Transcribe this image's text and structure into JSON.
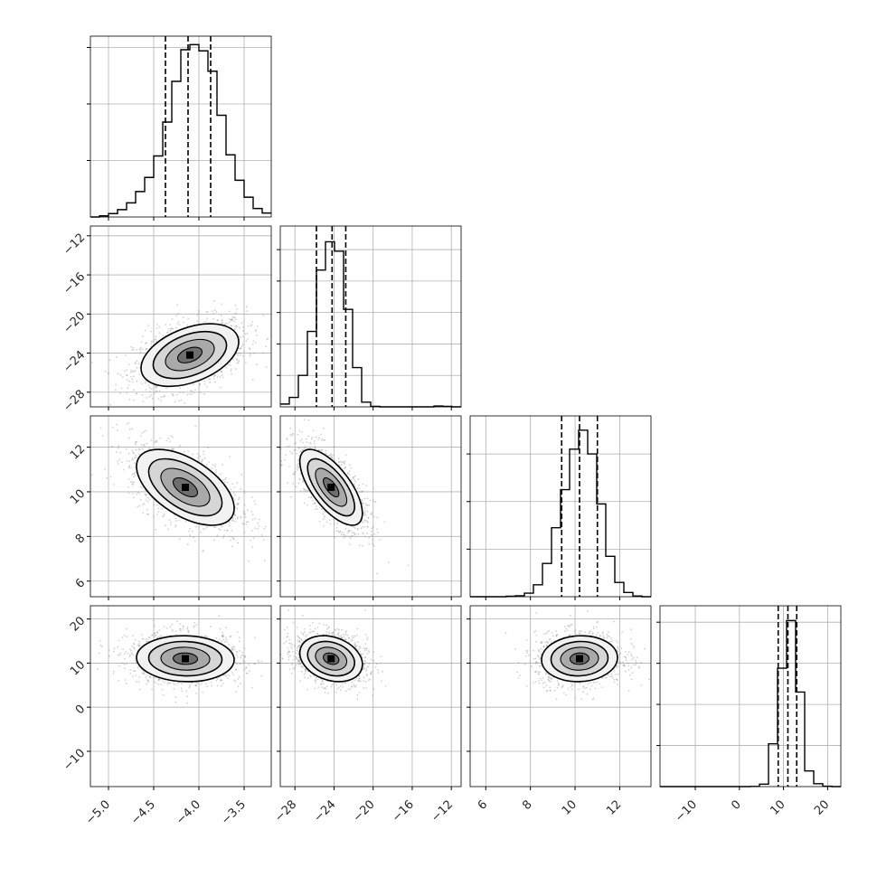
{
  "chart_data": {
    "type": "corner",
    "title": "",
    "parameters": [
      {
        "index": 0,
        "range": [
          -5.2,
          -3.2
        ],
        "ticks": [
          -5.0,
          -4.5,
          -4.0,
          -3.5
        ],
        "tick_labels": [
          "−5.0",
          "−4.5",
          "−4.0",
          "−3.5"
        ],
        "quantiles": [
          -4.37,
          -4.12,
          -3.87
        ],
        "median": -4.12
      },
      {
        "index": 1,
        "range": [
          -29.5,
          -11.0
        ],
        "ticks": [
          -28,
          -24,
          -20,
          -16,
          -12
        ],
        "tick_labels": [
          "−28",
          "−24",
          "−20",
          "−16",
          "−12"
        ],
        "quantiles": [
          -25.8,
          -24.2,
          -22.8
        ],
        "median": -24.2
      },
      {
        "index": 2,
        "range": [
          5.3,
          13.4
        ],
        "ticks": [
          6,
          8,
          10,
          12
        ],
        "tick_labels": [
          "6",
          "8",
          "10",
          "12"
        ],
        "quantiles": [
          9.4,
          10.2,
          11.0
        ],
        "median": 10.2
      },
      {
        "index": 3,
        "range": [
          -18.0,
          23.0
        ],
        "ticks": [
          -10,
          0,
          10,
          20
        ],
        "tick_labels": [
          "−10",
          "0",
          "10",
          "20"
        ],
        "quantiles": [
          8.8,
          11.0,
          13.0
        ],
        "median": 11.0
      }
    ],
    "histograms": [
      {
        "param": 0,
        "bin_edges": [
          -5.2,
          -5.1,
          -5.0,
          -4.9,
          -4.8,
          -4.7,
          -4.6,
          -4.5,
          -4.4,
          -4.3,
          -4.2,
          -4.1,
          -4.0,
          -3.9,
          -3.8,
          -3.7,
          -3.6,
          -3.5,
          -3.4,
          -3.3,
          -3.2
        ],
        "counts": [
          0,
          2,
          6,
          13,
          25,
          45,
          70,
          108,
          168,
          240,
          296,
          305,
          294,
          258,
          180,
          110,
          65,
          35,
          15,
          7
        ],
        "ymax": 320,
        "yticks": [
          0,
          100,
          200,
          300
        ]
      },
      {
        "param": 1,
        "bin_edges": [
          -29.5,
          -28.575,
          -27.65,
          -26.725,
          -25.8,
          -24.875,
          -23.95,
          -23.025,
          -22.1,
          -21.175,
          -20.25,
          -19.325,
          -18.4,
          -17.475,
          -16.55,
          -15.625,
          -14.7,
          -13.775,
          -12.85,
          -11.925,
          -11.0
        ],
        "counts": [
          18,
          60,
          200,
          480,
          870,
          1050,
          990,
          620,
          250,
          30,
          3,
          0,
          0,
          0,
          0,
          0,
          0,
          5,
          3,
          0
        ],
        "ymax": 1150,
        "yticks": [
          0,
          200,
          400,
          600,
          800,
          1000
        ]
      },
      {
        "param": 2,
        "bin_edges": [
          5.3,
          5.705,
          6.11,
          6.515,
          6.92,
          7.325,
          7.73,
          8.135,
          8.54,
          8.945,
          9.35,
          9.755,
          10.16,
          10.565,
          10.97,
          11.375,
          11.78,
          12.185,
          12.59,
          12.995,
          13.4
        ],
        "counts": [
          0,
          0,
          0,
          0,
          2,
          4,
          15,
          50,
          140,
          290,
          450,
          620,
          700,
          600,
          390,
          170,
          60,
          18,
          3,
          0
        ],
        "ymax": 760,
        "yticks": [
          0,
          200,
          400,
          600
        ]
      },
      {
        "param": 3,
        "bin_edges": [
          -18.0,
          -15.95,
          -13.9,
          -11.85,
          -9.8,
          -7.75,
          -5.7,
          -3.65,
          -1.6,
          0.45,
          2.5,
          4.55,
          6.6,
          8.65,
          10.7,
          12.75,
          14.8,
          16.85,
          18.9,
          20.95,
          23.0
        ],
        "counts": [
          0,
          0,
          0,
          0,
          0,
          0,
          0,
          0,
          0,
          0,
          2,
          30,
          520,
          1440,
          2020,
          1150,
          190,
          35,
          5,
          0
        ],
        "ymax": 2200,
        "yticks": [
          0,
          500,
          1000,
          1500,
          2000
        ]
      }
    ],
    "pairs": [
      {
        "x_param": 0,
        "y_param": 1,
        "mean": [
          -4.1,
          -24.2
        ],
        "sd": [
          0.27,
          1.6
        ],
        "corr": 0.42
      },
      {
        "x_param": 0,
        "y_param": 2,
        "mean": [
          -4.15,
          10.2
        ],
        "sd": [
          0.27,
          0.85
        ],
        "corr": -0.55
      },
      {
        "x_param": 1,
        "y_param": 2,
        "mean": [
          -24.3,
          10.2
        ],
        "sd": [
          1.6,
          0.85
        ],
        "corr": -0.68
      },
      {
        "x_param": 0,
        "y_param": 3,
        "mean": [
          -4.15,
          11.0
        ],
        "sd": [
          0.27,
          2.6
        ],
        "corr": -0.05
      },
      {
        "x_param": 1,
        "y_param": 3,
        "mean": [
          -24.3,
          11.0
        ],
        "sd": [
          1.6,
          2.6
        ],
        "corr": -0.25
      },
      {
        "x_param": 2,
        "y_param": 3,
        "mean": [
          10.2,
          11.0
        ],
        "sd": [
          0.85,
          2.6
        ],
        "corr": 0.05
      }
    ],
    "contour_sigma_levels": [
      0.5,
      1.0,
      1.5,
      2.0
    ],
    "density_shades": [
      "#6e6e6e",
      "#a9a9a9",
      "#d6d6d6",
      "#f2f2f2"
    ],
    "colors": {
      "line": "#000000",
      "scatter": "#9a9a9a",
      "grid": "#b0b0b0"
    },
    "grid": true,
    "xlabel": "",
    "ylabel": ""
  }
}
